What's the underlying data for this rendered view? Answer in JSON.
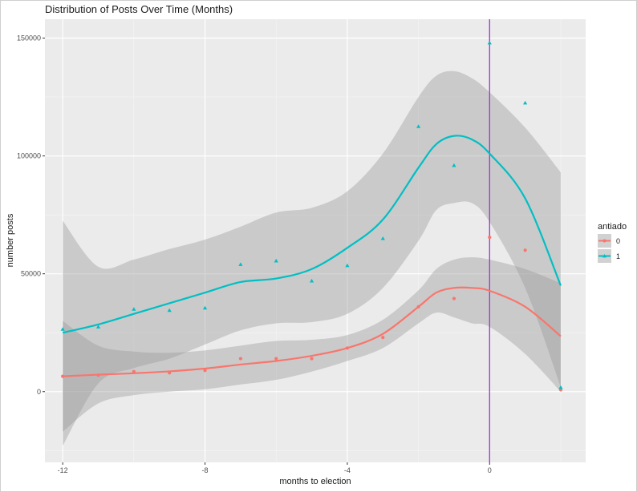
{
  "chart_data": {
    "type": "scatter",
    "title": "Distribution of Posts Over Time (Months)",
    "xlabel": "months to election",
    "ylabel": "number posts",
    "xlim": [
      -12.5,
      2.7
    ],
    "ylim": [
      -30000,
      158000
    ],
    "x_ticks": [
      -12,
      -8,
      -4,
      0
    ],
    "y_ticks": [
      0,
      50000,
      100000,
      150000
    ],
    "x_tick_labels": [
      "-12",
      "-8",
      "-4",
      "0"
    ],
    "y_tick_labels": [
      "0",
      "50000",
      "100000",
      "150000"
    ],
    "grid": true,
    "vline": {
      "x": 0,
      "color": "#9b30d9"
    },
    "legend": {
      "title": "antiado",
      "placement": "right"
    },
    "series": [
      {
        "name": "0",
        "color": "#f8766d",
        "marker": "circle",
        "x": [
          -12,
          -11,
          -10,
          -9,
          -8,
          -7,
          -6,
          -5,
          -4,
          -3,
          -2,
          -1,
          0,
          1,
          2
        ],
        "y": [
          6500,
          7000,
          8500,
          8000,
          9000,
          14000,
          14000,
          14000,
          18500,
          23000,
          36000,
          39500,
          65500,
          60000,
          800
        ],
        "smooth": {
          "x": [
            -12,
            -11,
            -10,
            -9,
            -8,
            -7,
            -6,
            -5,
            -4,
            -3,
            -2,
            -1.5,
            -1,
            -0.5,
            0,
            1,
            2
          ],
          "y": [
            6500,
            7200,
            7800,
            8600,
            9800,
            11500,
            13000,
            15200,
            18500,
            24500,
            36000,
            42000,
            44000,
            44000,
            42800,
            36000,
            23500
          ],
          "lower": [
            -17000,
            -5000,
            -1500,
            0,
            1000,
            3000,
            5000,
            8500,
            13000,
            18500,
            29000,
            33500,
            31500,
            29000,
            27500,
            16000,
            0
          ],
          "upper": [
            30000,
            19500,
            17000,
            16500,
            17500,
            19500,
            21500,
            22000,
            24000,
            30500,
            43000,
            52000,
            56000,
            57000,
            56000,
            52000,
            46000
          ]
        }
      },
      {
        "name": "1",
        "color": "#00bfc4",
        "marker": "triangle",
        "x": [
          -12,
          -11,
          -10,
          -9,
          -8,
          -7,
          -6,
          -5,
          -4,
          -3,
          -2,
          -1,
          0,
          1,
          2
        ],
        "y": [
          26500,
          27500,
          35000,
          34500,
          35500,
          54000,
          55500,
          47000,
          53500,
          65000,
          112500,
          96000,
          148000,
          122500,
          1800
        ],
        "smooth": {
          "x": [
            -12,
            -11,
            -10,
            -9,
            -8,
            -7,
            -6,
            -5,
            -4,
            -3,
            -2,
            -1.5,
            -1,
            -0.5,
            0,
            1,
            2
          ],
          "y": [
            25000,
            28500,
            33000,
            37500,
            42000,
            46500,
            48000,
            52000,
            61000,
            73000,
            95000,
            105000,
            108500,
            107000,
            101000,
            82000,
            45000
          ],
          "lower": [
            -23000,
            3500,
            10000,
            14000,
            20000,
            26000,
            29000,
            29500,
            33000,
            44000,
            64000,
            77000,
            80000,
            80000,
            72000,
            44000,
            2000
          ],
          "upper": [
            72500,
            53000,
            56000,
            60500,
            64500,
            70000,
            76000,
            78000,
            85000,
            101000,
            125000,
            134000,
            136000,
            133000,
            127000,
            112000,
            93000
          ]
        }
      }
    ]
  }
}
